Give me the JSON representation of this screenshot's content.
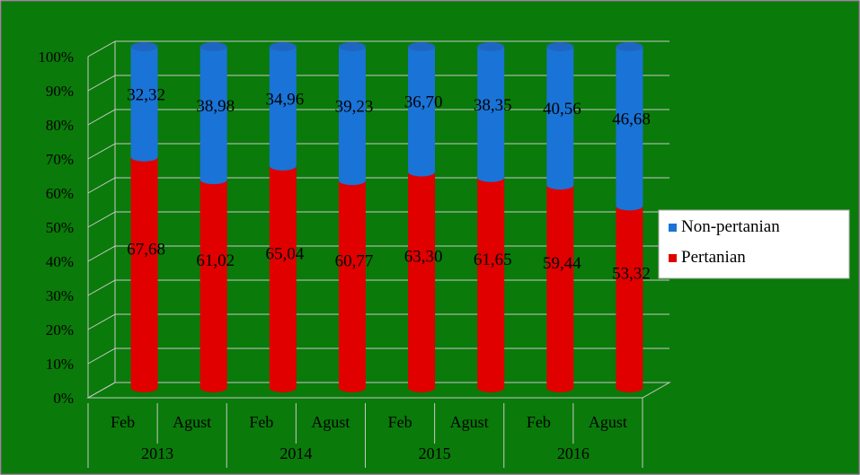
{
  "chart_data": {
    "type": "bar",
    "stacked": true,
    "percent_stacked": true,
    "three_d": true,
    "bar_shape": "cylinder",
    "background_color": "#0a7a0a",
    "grid": true,
    "legend_position": "right",
    "title": "",
    "xlabel": "",
    "ylabel": "",
    "ylim": [
      0,
      100
    ],
    "y_ticks": [
      "0%",
      "10%",
      "20%",
      "30%",
      "40%",
      "50%",
      "60%",
      "70%",
      "80%",
      "90%",
      "100%"
    ],
    "categories": [
      "Feb",
      "Agust",
      "Feb",
      "Agust",
      "Feb",
      "Agust",
      "Feb",
      "Agust"
    ],
    "groups": [
      {
        "label": "2013",
        "span": 2
      },
      {
        "label": "2014",
        "span": 2
      },
      {
        "label": "2015",
        "span": 2
      },
      {
        "label": "2016",
        "span": 2
      }
    ],
    "series": [
      {
        "name": "Pertanian",
        "color": "#e00000",
        "values": [
          67.68,
          61.02,
          65.04,
          60.77,
          63.3,
          61.65,
          59.44,
          53.32
        ],
        "labels": [
          "67,68",
          "61,02",
          "65,04",
          "60,77",
          "63,30",
          "61,65",
          "59,44",
          "53,32"
        ]
      },
      {
        "name": "Non-pertanian",
        "color": "#1a73d6",
        "values": [
          32.32,
          38.98,
          34.96,
          39.23,
          36.7,
          38.35,
          40.56,
          46.68
        ],
        "labels": [
          "32,32",
          "38,98",
          "34,96",
          "39,23",
          "36,70",
          "38,35",
          "40,56",
          "46,68"
        ]
      }
    ],
    "legend": [
      {
        "name": "Non-pertanian",
        "color": "#1a73d6"
      },
      {
        "name": "Pertanian",
        "color": "#e00000"
      }
    ]
  }
}
